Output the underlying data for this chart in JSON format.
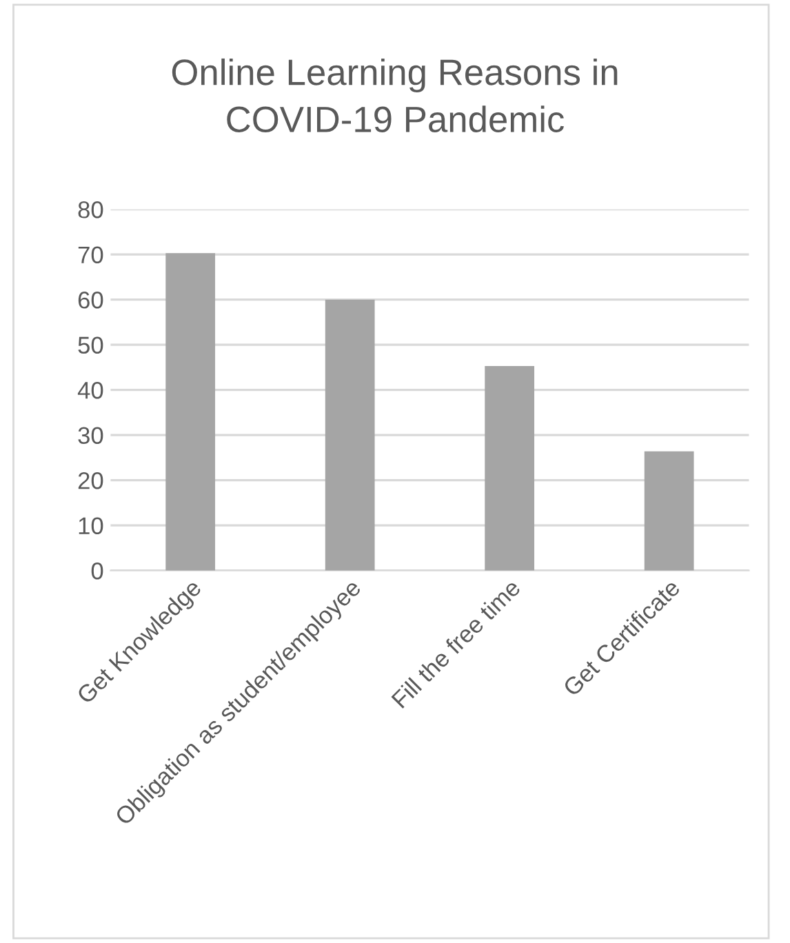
{
  "chart_data": {
    "type": "bar",
    "title": "Online Learning Reasons in\nCOVID-19 Pandemic",
    "categories": [
      "Get Knowledge",
      "Obligation as student/employee",
      "Fill the free time",
      "Get Certificate"
    ],
    "values": [
      70.3,
      60,
      45.3,
      26.4
    ],
    "color": "#a5a5a5",
    "ylim": [
      0,
      80
    ],
    "yticks": [
      0,
      10,
      20,
      30,
      40,
      50,
      60,
      70,
      80
    ],
    "grid": "y"
  }
}
